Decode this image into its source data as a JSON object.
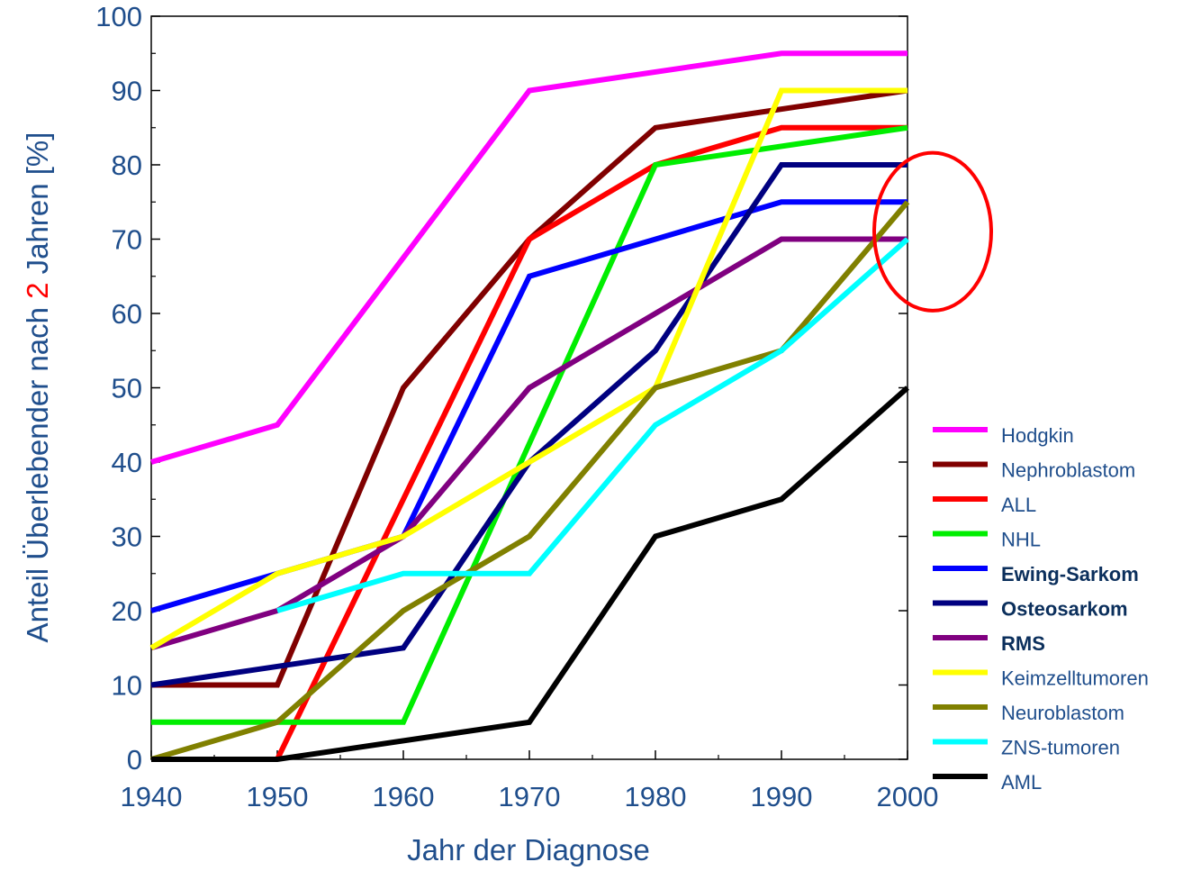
{
  "chart_data": {
    "type": "line",
    "xlabel": "Jahr der Diagnose",
    "ylabel_parts": [
      "Anteil Überlebender nach ",
      "2",
      " Jahren [%]"
    ],
    "ylabel_colors": [
      "#1f4e8c",
      "#ff0000",
      "#1f4e8c"
    ],
    "xlim": [
      1940,
      2000
    ],
    "ylim": [
      0,
      100
    ],
    "x_ticks": [
      1940,
      1950,
      1960,
      1970,
      1980,
      1990,
      2000
    ],
    "y_ticks": [
      0,
      10,
      20,
      30,
      40,
      50,
      60,
      70,
      80,
      90,
      100
    ],
    "grid": false,
    "legend_position": "right",
    "series": [
      {
        "name": "Hodgkin",
        "color": "#ff00ff",
        "bold": false,
        "x": [
          1940,
          1950,
          1970,
          1990,
          2000
        ],
        "y": [
          40,
          45,
          90,
          95,
          95
        ]
      },
      {
        "name": "Nephroblastom",
        "color": "#800000",
        "bold": false,
        "x": [
          1940,
          1950,
          1960,
          1970,
          1980,
          2000
        ],
        "y": [
          10,
          10,
          50,
          70,
          85,
          90
        ]
      },
      {
        "name": "ALL",
        "color": "#ff0000",
        "bold": false,
        "x": [
          1950,
          1970,
          1980,
          1990,
          2000
        ],
        "y": [
          0,
          70,
          80,
          85,
          85
        ]
      },
      {
        "name": "NHL",
        "color": "#00ee00",
        "bold": false,
        "x": [
          1940,
          1960,
          1980,
          2000
        ],
        "y": [
          5,
          5,
          80,
          85
        ]
      },
      {
        "name": "Ewing-Sarkom",
        "color": "#0000ff",
        "bold": true,
        "x": [
          1940,
          1960,
          1970,
          1990,
          2000
        ],
        "y": [
          20,
          30,
          65,
          75,
          75
        ]
      },
      {
        "name": "Osteosarkom",
        "color": "#000080",
        "bold": true,
        "x": [
          1940,
          1960,
          1970,
          1980,
          1990,
          2000
        ],
        "y": [
          10,
          15,
          40,
          55,
          80,
          80
        ]
      },
      {
        "name": "RMS",
        "color": "#800080",
        "bold": true,
        "x": [
          1940,
          1950,
          1960,
          1970,
          1990,
          2000
        ],
        "y": [
          15,
          20,
          30,
          50,
          70,
          70
        ]
      },
      {
        "name": "Keimzelltumoren",
        "color": "#ffff00",
        "bold": false,
        "x": [
          1940,
          1950,
          1960,
          1980,
          1990,
          2000
        ],
        "y": [
          15,
          25,
          30,
          50,
          90,
          90
        ]
      },
      {
        "name": "Neuroblastom",
        "color": "#808000",
        "bold": false,
        "x": [
          1940,
          1950,
          1960,
          1970,
          1980,
          1990,
          2000
        ],
        "y": [
          0,
          5,
          20,
          30,
          50,
          55,
          75
        ]
      },
      {
        "name": "ZNS-tumoren",
        "color": "#00ffff",
        "bold": false,
        "x": [
          1950,
          1960,
          1970,
          1980,
          1990,
          2000
        ],
        "y": [
          20,
          25,
          25,
          45,
          55,
          70
        ]
      },
      {
        "name": "AML",
        "color": "#000000",
        "bold": false,
        "x": [
          1940,
          1950,
          1970,
          1980,
          1990,
          2000
        ],
        "y": [
          0,
          0,
          5,
          30,
          35,
          50
        ]
      }
    ],
    "annotation": {
      "shape": "ellipse",
      "color": "#ff0000",
      "center_x": 2002,
      "center_y": 71,
      "span_x": 9,
      "span_y": 21
    }
  }
}
